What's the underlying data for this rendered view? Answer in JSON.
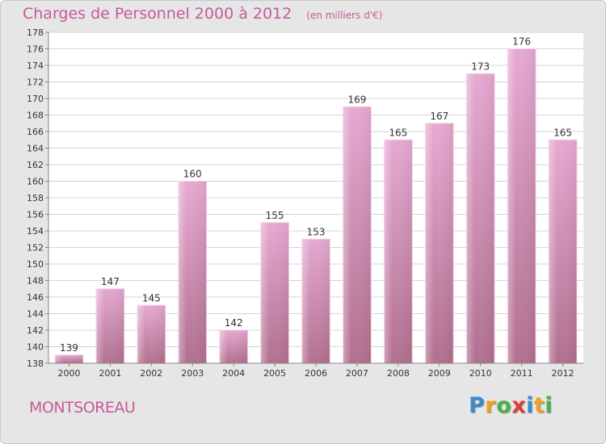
{
  "header": {
    "title": "Charges de Personnel 2000 à 2012",
    "subtitle": "(en milliers d'€)"
  },
  "footer": {
    "town": "MONTSOREAU",
    "brand": [
      "P",
      "r",
      "o",
      "x",
      "i",
      "t",
      "i"
    ],
    "brand_colors": [
      "#3a8ccf",
      "#f0a020",
      "#4bb24b",
      "#e03a3a",
      "#3a8ccf",
      "#f0a020",
      "#4bb24b"
    ]
  },
  "colors": {
    "bar_top": "#e6a9d2",
    "bar_bottom": "#b2708f",
    "accent": "#c65a9a"
  },
  "chart_data": {
    "type": "bar",
    "title": "Charges de Personnel 2000 à 2012",
    "subtitle": "(en milliers d'€)",
    "categories": [
      "2000",
      "2001",
      "2002",
      "2003",
      "2004",
      "2005",
      "2006",
      "2007",
      "2008",
      "2009",
      "2010",
      "2011",
      "2012"
    ],
    "values": [
      139,
      147,
      145,
      160,
      142,
      155,
      153,
      169,
      165,
      167,
      173,
      176,
      165
    ],
    "ylim": [
      138,
      178
    ],
    "yticks": [
      138,
      140,
      142,
      144,
      146,
      148,
      150,
      152,
      154,
      156,
      158,
      160,
      162,
      164,
      166,
      168,
      170,
      172,
      174,
      176,
      178
    ],
    "grid": true,
    "xlabel": "",
    "ylabel": ""
  }
}
